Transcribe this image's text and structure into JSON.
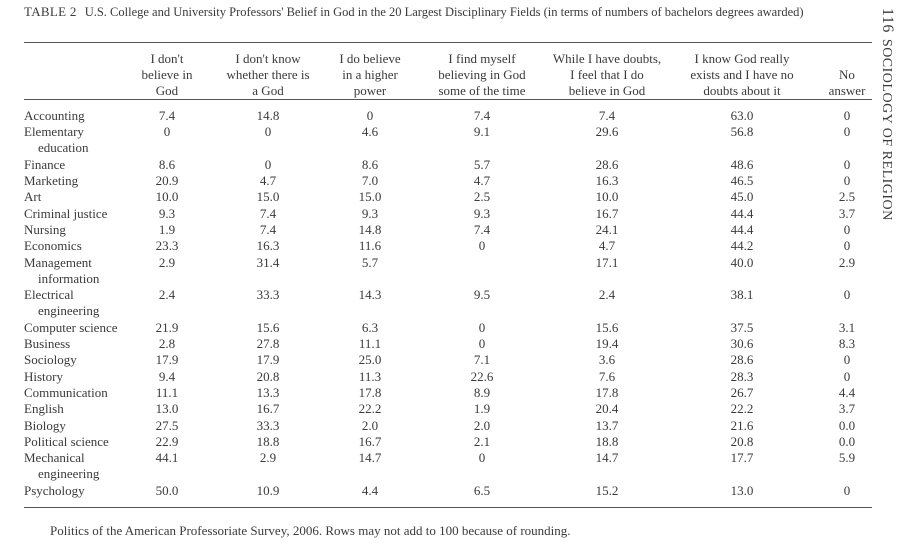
{
  "table": {
    "label": "TABLE 2",
    "caption": "U.S. College and University Professors' Belief in God in the 20 Largest Disciplinary Fields (in terms of numbers of bachelors degrees awarded)",
    "columns": [
      [
        "I don't",
        "believe in",
        "God"
      ],
      [
        "I don't know",
        "whether there is",
        "a God"
      ],
      [
        "I do believe",
        "in a higher",
        "power"
      ],
      [
        "I find myself",
        "believing in God",
        "some of the time"
      ],
      [
        "While I have doubts,",
        "I feel that I do",
        "believe in God"
      ],
      [
        "I know God really",
        "exists and I have no",
        "doubts about it"
      ],
      [
        "No",
        "answer"
      ]
    ],
    "rows": [
      {
        "name": [
          "Accounting"
        ],
        "values": [
          "7.4",
          "14.8",
          "0",
          "7.4",
          "7.4",
          "63.0",
          "0"
        ]
      },
      {
        "name": [
          "Elementary",
          "education"
        ],
        "values": [
          "0",
          "0",
          "4.6",
          "9.1",
          "29.6",
          "56.8",
          "0"
        ]
      },
      {
        "name": [
          "Finance"
        ],
        "values": [
          "8.6",
          "0",
          "8.6",
          "5.7",
          "28.6",
          "48.6",
          "0"
        ]
      },
      {
        "name": [
          "Marketing"
        ],
        "values": [
          "20.9",
          "4.7",
          "7.0",
          "4.7",
          "16.3",
          "46.5",
          "0"
        ]
      },
      {
        "name": [
          "Art"
        ],
        "values": [
          "10.0",
          "15.0",
          "15.0",
          "2.5",
          "10.0",
          "45.0",
          "2.5"
        ]
      },
      {
        "name": [
          "Criminal justice"
        ],
        "values": [
          "9.3",
          "7.4",
          "9.3",
          "9.3",
          "16.7",
          "44.4",
          "3.7"
        ]
      },
      {
        "name": [
          "Nursing"
        ],
        "values": [
          "1.9",
          "7.4",
          "14.8",
          "7.4",
          "24.1",
          "44.4",
          "0"
        ]
      },
      {
        "name": [
          "Economics"
        ],
        "values": [
          "23.3",
          "16.3",
          "11.6",
          "0",
          "4.7",
          "44.2",
          "0"
        ]
      },
      {
        "name": [
          "Management",
          "information"
        ],
        "values": [
          "2.9",
          "31.4",
          "5.7",
          "",
          "17.1",
          "40.0",
          "2.9"
        ]
      },
      {
        "name": [
          "Electrical",
          "engineering"
        ],
        "values": [
          "2.4",
          "33.3",
          "14.3",
          "9.5",
          "2.4",
          "38.1",
          "0"
        ]
      },
      {
        "name": [
          "Computer science"
        ],
        "values": [
          "21.9",
          "15.6",
          "6.3",
          "0",
          "15.6",
          "37.5",
          "3.1"
        ]
      },
      {
        "name": [
          "Business"
        ],
        "values": [
          "2.8",
          "27.8",
          "11.1",
          "0",
          "19.4",
          "30.6",
          "8.3"
        ]
      },
      {
        "name": [
          "Sociology"
        ],
        "values": [
          "17.9",
          "17.9",
          "25.0",
          "7.1",
          "3.6",
          "28.6",
          "0"
        ]
      },
      {
        "name": [
          "History"
        ],
        "values": [
          "9.4",
          "20.8",
          "11.3",
          "22.6",
          "7.6",
          "28.3",
          "0"
        ]
      },
      {
        "name": [
          "Communication"
        ],
        "values": [
          "11.1",
          "13.3",
          "17.8",
          "8.9",
          "17.8",
          "26.7",
          "4.4"
        ]
      },
      {
        "name": [
          "English"
        ],
        "values": [
          "13.0",
          "16.7",
          "22.2",
          "1.9",
          "20.4",
          "22.2",
          "3.7"
        ]
      },
      {
        "name": [
          "Biology"
        ],
        "values": [
          "27.5",
          "33.3",
          "2.0",
          "2.0",
          "13.7",
          "21.6",
          "0.0"
        ]
      },
      {
        "name": [
          "Political science"
        ],
        "values": [
          "22.9",
          "18.8",
          "16.7",
          "2.1",
          "18.8",
          "20.8",
          "0.0"
        ]
      },
      {
        "name": [
          "Mechanical",
          "engineering"
        ],
        "values": [
          "44.1",
          "2.9",
          "14.7",
          "0",
          "14.7",
          "17.7",
          "5.9"
        ]
      },
      {
        "name": [
          "Psychology"
        ],
        "values": [
          "50.0",
          "10.9",
          "4.4",
          "6.5",
          "15.2",
          "13.0",
          "0"
        ]
      }
    ],
    "footnote": "Politics of the American Professoriate Survey, 2006. Rows may not add to 100 because of rounding."
  },
  "running_head": {
    "page_number": "116",
    "title": "SOCIOLOGY OF RELIGION"
  }
}
